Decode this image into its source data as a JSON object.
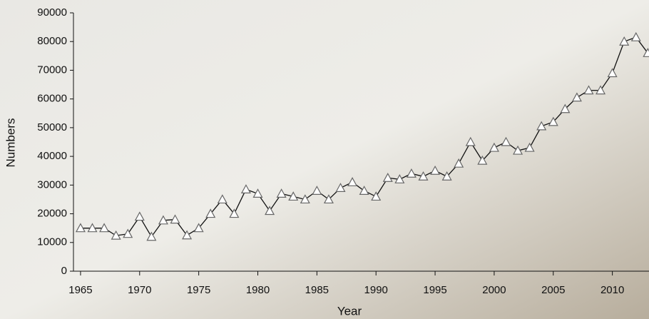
{
  "chart_data": {
    "type": "line",
    "x_label": "Year",
    "y_label": "Numbers",
    "x": [
      1965,
      1966,
      1967,
      1968,
      1969,
      1970,
      1971,
      1972,
      1973,
      1974,
      1975,
      1976,
      1977,
      1978,
      1979,
      1980,
      1981,
      1982,
      1983,
      1984,
      1985,
      1986,
      1987,
      1988,
      1989,
      1990,
      1991,
      1992,
      1993,
      1994,
      1995,
      1996,
      1997,
      1998,
      1999,
      2000,
      2001,
      2002,
      2003,
      2004,
      2005,
      2006,
      2007,
      2008,
      2009,
      2010,
      2011,
      2012,
      2013
    ],
    "series": [
      {
        "name": "Numbers",
        "color": "#111111",
        "values": [
          15000,
          15000,
          15000,
          12400,
          13000,
          19000,
          12000,
          17700,
          18000,
          12500,
          15000,
          20000,
          25000,
          20000,
          28500,
          27000,
          21000,
          27000,
          26000,
          25000,
          28000,
          25000,
          29000,
          31000,
          28000,
          26000,
          32500,
          32000,
          34000,
          33000,
          35000,
          33000,
          37500,
          45000,
          38500,
          43000,
          45000,
          42000,
          43000,
          50500,
          52000,
          56500,
          60500,
          63000,
          63000,
          69000,
          80000,
          81500,
          76000
        ]
      }
    ],
    "xlim": [
      1964.4,
      2013.1
    ],
    "xticks": [
      1965,
      1970,
      1975,
      1980,
      1985,
      1990,
      1995,
      2000,
      2005,
      2010
    ],
    "ylim": [
      0,
      90000
    ],
    "yticks": [
      0,
      10000,
      20000,
      30000,
      40000,
      50000,
      60000,
      70000,
      80000,
      90000
    ]
  }
}
